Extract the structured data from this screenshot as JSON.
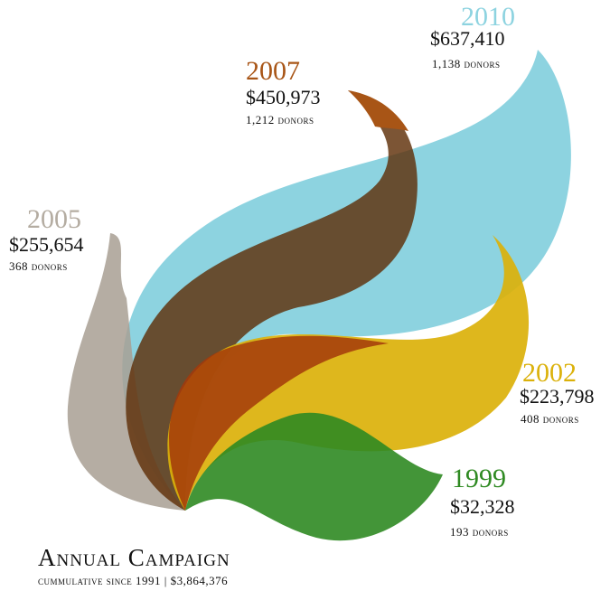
{
  "campaigns": [
    {
      "year": "2010",
      "amount": "$637,410",
      "donors": "1,138 donors"
    },
    {
      "year": "2007",
      "amount": "$450,973",
      "donors": "1,212 donors"
    },
    {
      "year": "2005",
      "amount": "$255,654",
      "donors": "368 donors"
    },
    {
      "year": "2002",
      "amount": "$223,798",
      "donors": "408 donors"
    },
    {
      "year": "1999",
      "amount": "$32,328",
      "donors": "193 donors"
    }
  ],
  "footer": {
    "title": "Annual Campaign",
    "subtitle": "cummulative since 1991 | $3,864,376"
  }
}
